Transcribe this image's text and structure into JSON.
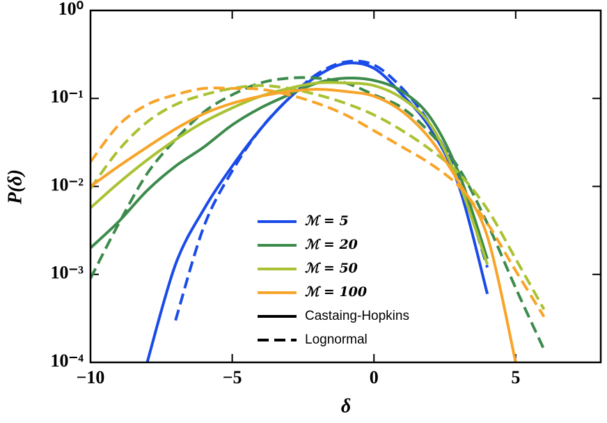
{
  "chart_data": {
    "type": "line",
    "xlabel": "δ",
    "ylabel": "P(δ)",
    "log_y": true,
    "xlim": [
      -10,
      8
    ],
    "ylim": [
      0.0001,
      1
    ],
    "xticks": [
      {
        "value": -10,
        "label": "−10"
      },
      {
        "value": -5,
        "label": "−5"
      },
      0,
      5
    ],
    "yticks": [
      {
        "value": 0.0001,
        "label": "10⁻⁴"
      },
      {
        "value": 0.001,
        "label": "10⁻³"
      },
      {
        "value": 0.01,
        "label": "10⁻²"
      },
      {
        "value": 0.1,
        "label": "10⁻¹"
      },
      {
        "value": 1,
        "label": "10⁰"
      }
    ],
    "legend_position": "lower center",
    "line_styles": [
      {
        "name": "Castaing-Hopkins",
        "dash": "solid"
      },
      {
        "name": "Lognormal",
        "dash": "dashed"
      }
    ],
    "x": [
      -10,
      -9,
      -8,
      -7,
      -6,
      -5,
      -4,
      -3,
      -2,
      -1,
      0,
      1,
      2,
      3,
      4,
      5,
      6,
      7,
      8
    ],
    "series": [
      {
        "name": "ℳ = 5",
        "color": "#1a4be8",
        "values": [
          [
            null,
            null,
            0.0001,
            0.0013,
            0.0055,
            0.017,
            0.045,
            0.1,
            0.18,
            0.25,
            0.22,
            0.11,
            0.045,
            0.01,
            0.0006,
            null,
            null,
            null,
            null
          ],
          [
            null,
            null,
            null,
            0.0003,
            0.0035,
            0.015,
            0.045,
            0.1,
            0.19,
            0.26,
            0.24,
            0.13,
            0.05,
            0.012,
            0.0012,
            null,
            null,
            null,
            null
          ]
        ]
      },
      {
        "name": "ℳ = 20",
        "color": "#3d8b4c",
        "values": [
          [
            0.002,
            0.004,
            0.009,
            0.017,
            0.028,
            0.05,
            0.078,
            0.11,
            0.15,
            0.17,
            0.16,
            0.12,
            0.06,
            0.014,
            0.0015,
            null,
            null,
            null,
            null
          ],
          [
            0.0009,
            0.0038,
            0.014,
            0.034,
            0.07,
            0.11,
            0.15,
            0.17,
            0.17,
            0.15,
            0.11,
            0.078,
            0.04,
            0.016,
            0.0038,
            0.0007,
            0.00014,
            null,
            null
          ]
        ]
      },
      {
        "name": "ℳ = 50",
        "color": "#a9c233",
        "values": [
          [
            0.0057,
            0.011,
            0.02,
            0.034,
            0.054,
            0.078,
            0.106,
            0.13,
            0.15,
            0.15,
            0.14,
            0.1,
            0.05,
            0.011,
            0.0013,
            null,
            null,
            null,
            null
          ],
          [
            0.0095,
            0.026,
            0.054,
            0.085,
            0.11,
            0.13,
            0.14,
            0.13,
            0.11,
            0.088,
            0.065,
            0.043,
            0.026,
            0.014,
            0.0055,
            0.0015,
            0.0004,
            null,
            null
          ]
        ]
      },
      {
        "name": "ℳ = 100",
        "color": "#f8a429",
        "values": [
          [
            0.01,
            0.017,
            0.028,
            0.045,
            0.067,
            0.088,
            0.106,
            0.12,
            0.127,
            0.12,
            0.106,
            0.071,
            0.034,
            0.011,
            0.0027,
            0.0001,
            null,
            null,
            null
          ],
          [
            0.019,
            0.05,
            0.085,
            0.11,
            0.13,
            0.13,
            0.127,
            0.11,
            0.088,
            0.065,
            0.043,
            0.028,
            0.018,
            0.01,
            0.0038,
            0.0011,
            0.00033,
            null,
            null
          ]
        ]
      }
    ]
  }
}
